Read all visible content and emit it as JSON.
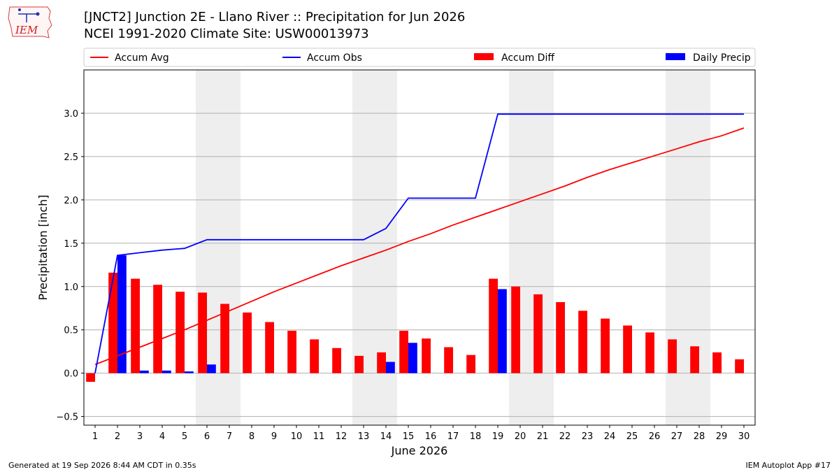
{
  "header": {
    "title_line1": "[JNCT2] Junction 2E - Llano River :: Precipitation for Jun 2026",
    "title_line2": "NCEI 1991-2020 Climate Site: USW00013973",
    "logo_text": "IEM"
  },
  "footer": {
    "left": "Generated at 19 Sep 2026 8:44 AM CDT in 0.35s",
    "right": "IEM Autoplot App #17"
  },
  "colors": {
    "accum_avg": "#ff0000",
    "accum_obs": "#0000ff",
    "accum_diff": "#ff0000",
    "daily_precip": "#0000ff",
    "weekend_shade": "#eeeeee",
    "grid": "#b0b0b0"
  },
  "chart_data": {
    "type": "bar",
    "xlabel": "June 2026",
    "ylabel": "Precipitation [inch]",
    "x": [
      1,
      2,
      3,
      4,
      5,
      6,
      7,
      8,
      9,
      10,
      11,
      12,
      13,
      14,
      15,
      16,
      17,
      18,
      19,
      20,
      21,
      22,
      23,
      24,
      25,
      26,
      27,
      28,
      29,
      30
    ],
    "xlim": [
      0.5,
      30.5
    ],
    "ylim": [
      -0.6,
      3.5
    ],
    "yticks": [
      -0.5,
      0.0,
      0.5,
      1.0,
      1.5,
      2.0,
      2.5,
      3.0
    ],
    "ytick_labels": [
      "−0.5",
      "0.0",
      "0.5",
      "1.0",
      "1.5",
      "2.0",
      "2.5",
      "3.0"
    ],
    "grid": "horizontal",
    "legend_position": "top",
    "shaded_weekends": [
      [
        6,
        7
      ],
      [
        13,
        14
      ],
      [
        20,
        21
      ],
      [
        27,
        28
      ]
    ],
    "series": [
      {
        "name": "Accum Avg",
        "type": "line",
        "values": [
          0.1,
          0.2,
          0.3,
          0.4,
          0.5,
          0.61,
          0.72,
          0.83,
          0.94,
          1.04,
          1.14,
          1.24,
          1.33,
          1.42,
          1.52,
          1.61,
          1.71,
          1.8,
          1.89,
          1.98,
          2.07,
          2.16,
          2.26,
          2.35,
          2.43,
          2.51,
          2.59,
          2.67,
          2.74,
          2.83
        ]
      },
      {
        "name": "Accum Obs",
        "type": "line",
        "values": [
          0.0,
          1.36,
          1.39,
          1.42,
          1.44,
          1.54,
          1.54,
          1.54,
          1.54,
          1.54,
          1.54,
          1.54,
          1.54,
          1.67,
          2.02,
          2.02,
          2.02,
          2.02,
          2.99,
          2.99,
          2.99,
          2.99,
          2.99,
          2.99,
          2.99,
          2.99,
          2.99,
          2.99,
          2.99,
          2.99
        ]
      },
      {
        "name": "Accum Diff",
        "type": "bar",
        "values": [
          -0.1,
          1.16,
          1.09,
          1.02,
          0.94,
          0.93,
          0.8,
          0.7,
          0.59,
          0.49,
          0.39,
          0.29,
          0.2,
          0.24,
          0.49,
          0.4,
          0.3,
          0.21,
          1.09,
          1.0,
          0.91,
          0.82,
          0.72,
          0.63,
          0.55,
          0.47,
          0.39,
          0.31,
          0.24,
          0.16
        ]
      },
      {
        "name": "Daily Precip",
        "type": "bar",
        "values": [
          0.0,
          1.36,
          0.03,
          0.03,
          0.02,
          0.1,
          0.0,
          0.0,
          0.0,
          0.0,
          0.0,
          0.0,
          0.0,
          0.13,
          0.35,
          0.0,
          0.0,
          0.0,
          0.97,
          0.0,
          0.0,
          0.0,
          0.0,
          0.0,
          0.0,
          0.0,
          0.0,
          0.0,
          0.0,
          0.0
        ]
      }
    ]
  }
}
